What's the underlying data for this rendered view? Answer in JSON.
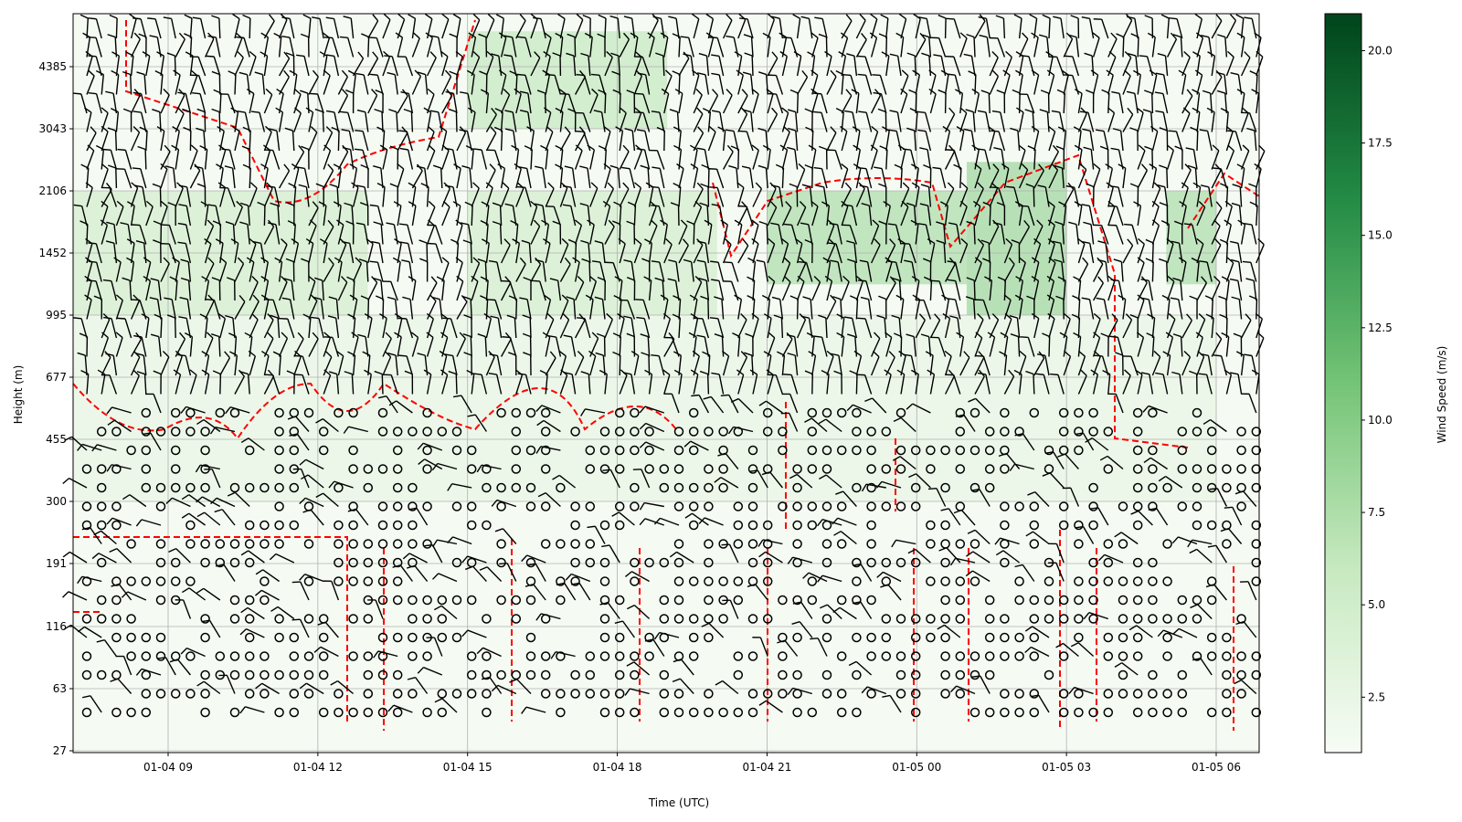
{
  "chart_data": {
    "type": "heatmap",
    "title": "",
    "xlabel": "Time (UTC)",
    "ylabel": "Height (m)",
    "colorbar_label": "Wind Speed (m/s)",
    "x_ticks": [
      "01-04 09",
      "01-04 12",
      "01-04 15",
      "01-04 18",
      "01-04 21",
      "01-05 00",
      "01-05 03",
      "01-05 06"
    ],
    "y_ticks": [
      "27",
      "63",
      "116",
      "191",
      "300",
      "455",
      "677",
      "995",
      "1452",
      "2106",
      "3043",
      "4385"
    ],
    "colorbar_ticks": [
      "2.5",
      "5.0",
      "7.5",
      "10.0",
      "12.5",
      "15.0",
      "17.5",
      "20.0"
    ],
    "colorbar_range": [
      1,
      21
    ],
    "colormap": [
      "#f7fcf5",
      "#c7e9c0",
      "#74c476",
      "#238b45",
      "#00441b"
    ],
    "grid": true,
    "contour_color": "#ff0000",
    "barb_color": "#000000",
    "speed_field": {
      "time_range": [
        "01-04 07",
        "01-05 06"
      ],
      "height_axis": "log",
      "cells": [
        {
          "t": [
            "01-04 07",
            "01-04 13"
          ],
          "h": [
            995,
            2106
          ],
          "speed": 6
        },
        {
          "t": [
            "01-04 15",
            "01-04 19"
          ],
          "h": [
            3043,
            5400
          ],
          "speed": 7
        },
        {
          "t": [
            "01-04 15",
            "01-04 20"
          ],
          "h": [
            995,
            2106
          ],
          "speed": 6
        },
        {
          "t": [
            "01-04 21",
            "01-05 01"
          ],
          "h": [
            1200,
            2106
          ],
          "speed": 9
        },
        {
          "t": [
            "01-05 01",
            "01-05 03"
          ],
          "h": [
            995,
            2500
          ],
          "speed": 10
        },
        {
          "t": [
            "01-05 05",
            "01-05 06"
          ],
          "h": [
            1200,
            2106
          ],
          "speed": 9
        },
        {
          "t": [
            "01-04 07",
            "01-05 06"
          ],
          "h": [
            300,
            995
          ],
          "speed": 3
        }
      ]
    }
  }
}
